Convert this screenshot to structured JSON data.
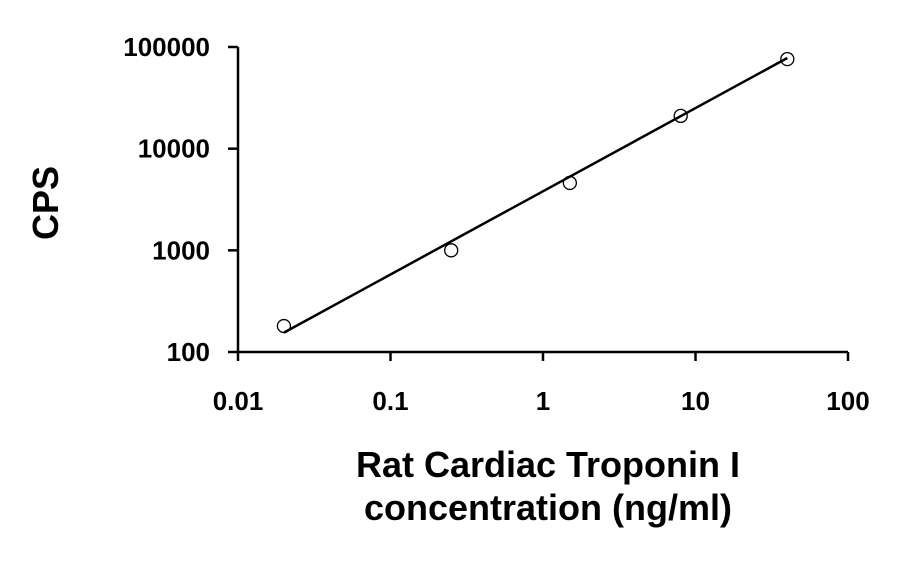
{
  "chart_data": {
    "type": "scatter",
    "xscale": "log",
    "yscale": "log",
    "xlim": [
      0.01,
      100
    ],
    "ylim": [
      100,
      100000
    ],
    "xlabel_lines": [
      "Rat Cardiac Troponin I",
      "concentration (ng/ml)"
    ],
    "ylabel": "CPS",
    "x_ticks": [
      {
        "value": 0.01,
        "label": "0.01"
      },
      {
        "value": 0.1,
        "label": "0.1"
      },
      {
        "value": 1,
        "label": "1"
      },
      {
        "value": 10,
        "label": "10"
      },
      {
        "value": 100,
        "label": "100"
      }
    ],
    "y_ticks": [
      {
        "value": 100,
        "label": "100"
      },
      {
        "value": 1000,
        "label": "1000"
      },
      {
        "value": 10000,
        "label": "10000"
      },
      {
        "value": 100000,
        "label": "100000"
      }
    ],
    "series": [
      {
        "x": [
          0.02,
          0.25,
          1.5,
          8,
          40
        ],
        "y": [
          180,
          1000,
          4600,
          21000,
          76000
        ]
      }
    ],
    "fit_line": {
      "x": [
        0.02,
        40
      ],
      "y": [
        155,
        78000
      ]
    },
    "grid": false,
    "legend": "none",
    "colors": {
      "axis": "#000000",
      "marker": "#000000",
      "line": "#000000"
    }
  }
}
